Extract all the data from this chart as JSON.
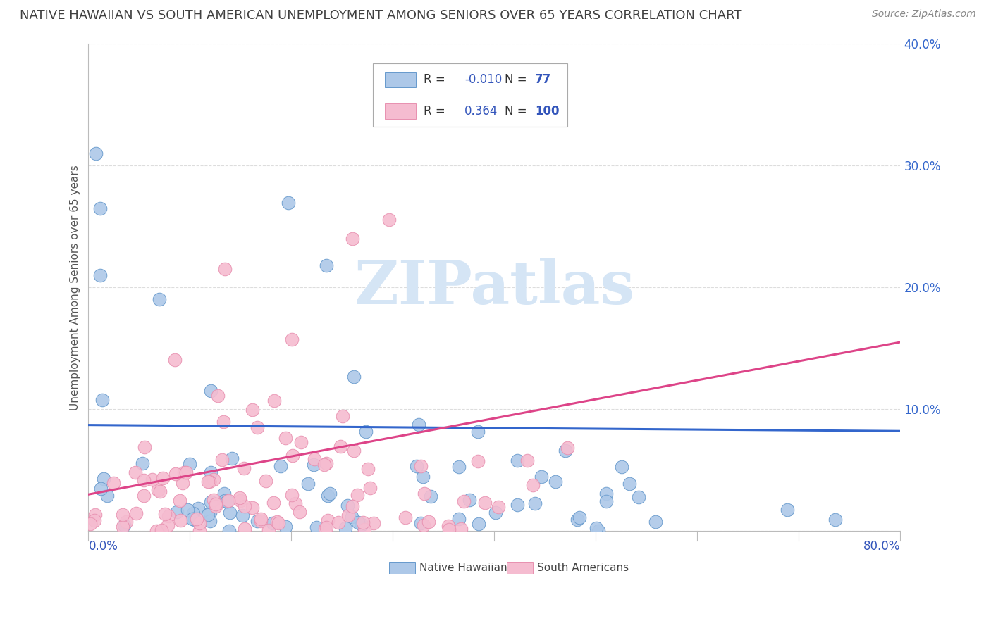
{
  "title": "NATIVE HAWAIIAN VS SOUTH AMERICAN UNEMPLOYMENT AMONG SENIORS OVER 65 YEARS CORRELATION CHART",
  "source": "Source: ZipAtlas.com",
  "ylabel": "Unemployment Among Seniors over 65 years",
  "xmin": 0.0,
  "xmax": 0.8,
  "ymin": 0.0,
  "ymax": 0.4,
  "yticks": [
    0.0,
    0.1,
    0.2,
    0.3,
    0.4
  ],
  "ytick_labels": [
    "",
    "10.0%",
    "20.0%",
    "30.0%",
    "40.0%"
  ],
  "blue_R": -0.01,
  "blue_N": 77,
  "pink_R": 0.364,
  "pink_N": 100,
  "blue_color": "#adc8e8",
  "blue_edge": "#6699cc",
  "pink_color": "#f5bcd0",
  "pink_edge": "#e890b0",
  "blue_line_color": "#3366cc",
  "pink_line_color": "#dd4488",
  "watermark_color": "#d5e5f5",
  "legend_color": "#3355bb",
  "background_color": "#ffffff",
  "grid_color": "#dddddd",
  "title_color": "#404040",
  "source_color": "#888888"
}
